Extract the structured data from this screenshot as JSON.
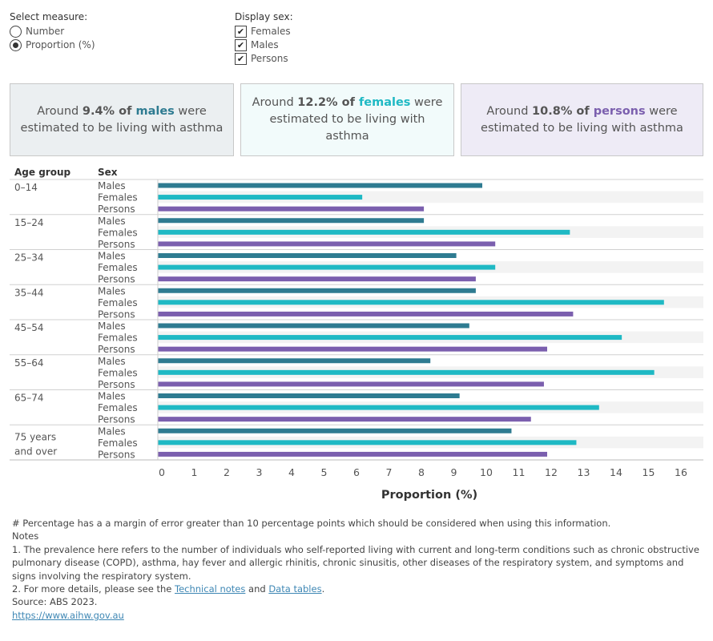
{
  "controls": {
    "measure_title": "Select measure:",
    "measure_options": [
      {
        "label": "Number",
        "selected": false
      },
      {
        "label": "Proportion (%)",
        "selected": true
      }
    ],
    "sex_title": "Display sex:",
    "sex_options": [
      {
        "label": "Females",
        "checked": true
      },
      {
        "label": "Males",
        "checked": true
      },
      {
        "label": "Persons",
        "checked": true
      }
    ]
  },
  "kpis": [
    {
      "prefix": "Around ",
      "value": "9.4% of ",
      "group": "males",
      "suffix": " were estimated to be living with asthma",
      "color": "#2e7b91",
      "bg": "#ebeff1"
    },
    {
      "prefix": "Around ",
      "value": "12.2% of ",
      "group": "females",
      "suffix": " were estimated to be living with asthma",
      "color": "#1fb9c4",
      "bg": "#f2fbfb"
    },
    {
      "prefix": "Around ",
      "value": "10.8% of ",
      "group": "persons",
      "suffix": " were estimated to be living with asthma",
      "color": "#7b5fae",
      "bg": "#eeebf6"
    }
  ],
  "chart_data": {
    "type": "bar",
    "orientation": "horizontal",
    "row_headers": [
      "Age group",
      "Sex"
    ],
    "age_groups": [
      "0–14",
      "15–24",
      "25–34",
      "35–44",
      "45–54",
      "55–64",
      "65–74",
      "75 years and over"
    ],
    "sexes": [
      "Males",
      "Females",
      "Persons"
    ],
    "series": [
      {
        "name": "Males",
        "color": "#2e7b91",
        "values": [
          10.0,
          8.2,
          9.2,
          9.8,
          9.6,
          8.4,
          9.3,
          10.9
        ]
      },
      {
        "name": "Females",
        "color": "#1fb9c4",
        "values": [
          6.3,
          12.7,
          10.4,
          15.6,
          14.3,
          15.3,
          13.6,
          12.9
        ]
      },
      {
        "name": "Persons",
        "color": "#7b5fae",
        "values": [
          8.2,
          10.4,
          9.8,
          12.8,
          12.0,
          11.9,
          11.5,
          12.0
        ]
      }
    ],
    "xlabel": "Proportion (%)",
    "xlim": [
      0,
      16
    ],
    "xticks": [
      "0",
      "1",
      "2",
      "3",
      "4",
      "5",
      "6",
      "7",
      "8",
      "9",
      "10",
      "11",
      "12",
      "13",
      "14",
      "15",
      "16"
    ],
    "grid": false
  },
  "footnotes": {
    "hash": "# Percentage has a a margin of error greater than 10 percentage points which should be considered when using this information.",
    "notes_title": "Notes",
    "note1": "1. The prevalence here refers to the number of individuals who self-reported living with current and long-term conditions such as chronic obstructive pulmonary disease (COPD), asthma, hay fever and allergic rhinitis, chronic sinusitis, other diseases of the respiratory system, and symptoms and signs involving the respiratory system.",
    "note2_prefix": "2. For more details, please see the ",
    "note2_link1": "Technical notes",
    "note2_and": " and ",
    "note2_link2": "Data tables",
    "note2_suffix": ".",
    "source": "Source: ABS 2023.",
    "url": "https://www.aihw.gov.au"
  }
}
